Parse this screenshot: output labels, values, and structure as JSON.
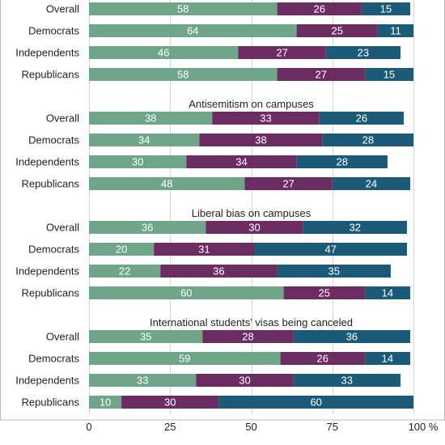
{
  "chart_data": {
    "type": "bar",
    "orientation": "horizontal",
    "stacked": true,
    "xlim": [
      0,
      100
    ],
    "x_ticks": [
      0,
      25,
      50,
      75,
      100
    ],
    "x_tick_labels": [
      "0",
      "25",
      "50",
      "75",
      "100 %"
    ],
    "grid": true,
    "legend": "none",
    "colors": [
      "#6fa68a",
      "#6b2d61",
      "#1c5b78"
    ],
    "groups": [
      {
        "title": "",
        "rows": [
          {
            "category": "Overall",
            "values": [
              58,
              26,
              15
            ]
          },
          {
            "category": "Democrats",
            "values": [
              64,
              25,
              11
            ]
          },
          {
            "category": "Independents",
            "values": [
              46,
              27,
              23
            ]
          },
          {
            "category": "Republicans",
            "values": [
              58,
              27,
              15
            ]
          }
        ]
      },
      {
        "title": "Antisemitism on campuses",
        "rows": [
          {
            "category": "Overall",
            "values": [
              38,
              33,
              26
            ]
          },
          {
            "category": "Democrats",
            "values": [
              34,
              38,
              28
            ]
          },
          {
            "category": "Independents",
            "values": [
              30,
              34,
              28
            ]
          },
          {
            "category": "Republicans",
            "values": [
              48,
              27,
              24
            ]
          }
        ]
      },
      {
        "title": "Liberal bias on campuses",
        "rows": [
          {
            "category": "Overall",
            "values": [
              36,
              30,
              32
            ]
          },
          {
            "category": "Democrats",
            "values": [
              20,
              31,
              47
            ]
          },
          {
            "category": "Independents",
            "values": [
              22,
              36,
              35
            ]
          },
          {
            "category": "Republicans",
            "values": [
              60,
              25,
              14
            ]
          }
        ]
      },
      {
        "title": "International students’ visas being canceled",
        "rows": [
          {
            "category": "Overall",
            "values": [
              35,
              28,
              36
            ]
          },
          {
            "category": "Democrats",
            "values": [
              59,
              26,
              14
            ]
          },
          {
            "category": "Independents",
            "values": [
              33,
              30,
              33
            ]
          },
          {
            "category": "Republicans",
            "values": [
              10,
              30,
              60
            ]
          }
        ]
      }
    ]
  }
}
